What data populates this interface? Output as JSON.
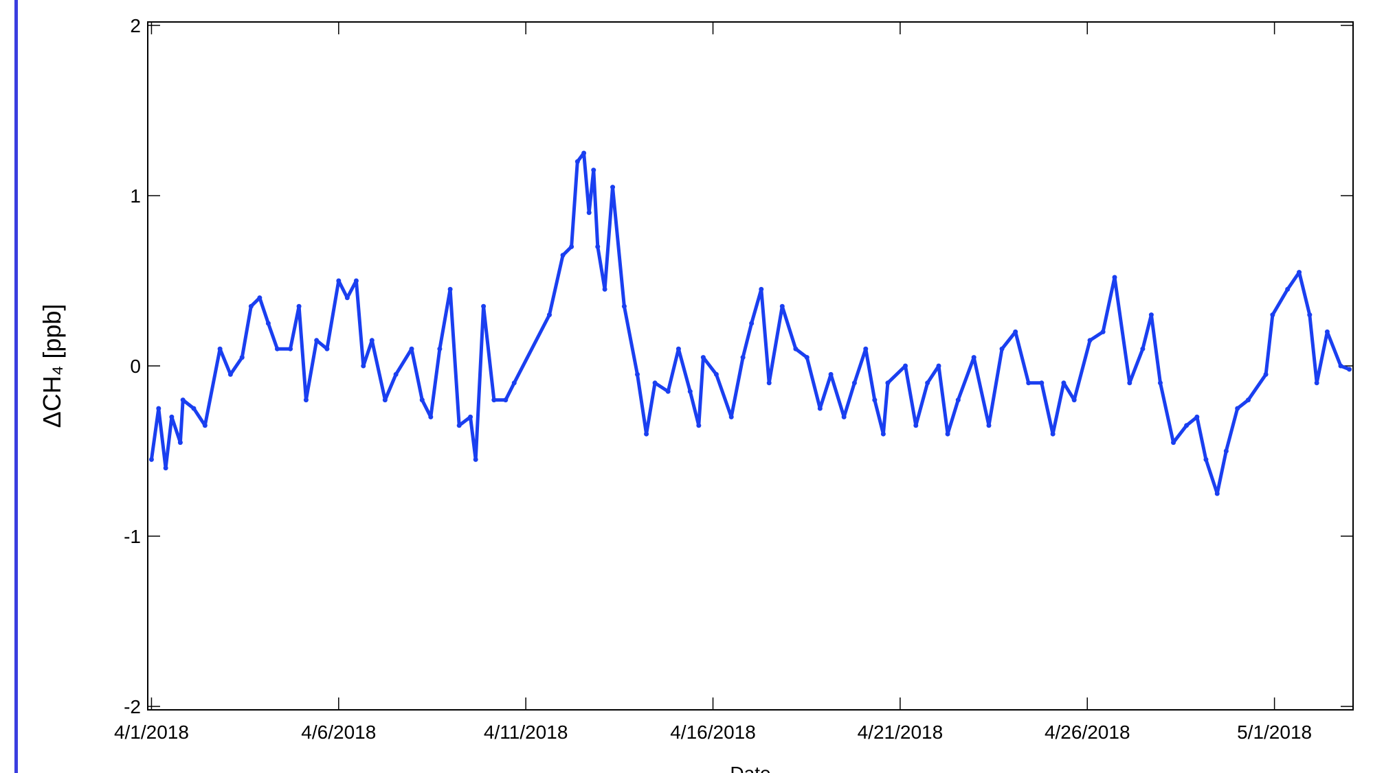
{
  "chart_data": {
    "type": "line",
    "y_label": "ΔCH₄ [ppb]",
    "x_label": "Date",
    "xlim": [
      -0.1,
      32.1
    ],
    "ylim": [
      -2.02,
      2.02
    ],
    "xticks": [
      {
        "value": 0,
        "label": "4/1/2018"
      },
      {
        "value": 5,
        "label": "4/6/2018"
      },
      {
        "value": 10,
        "label": "4/11/2018"
      },
      {
        "value": 15,
        "label": "4/16/2018"
      },
      {
        "value": 20,
        "label": "4/21/2018"
      },
      {
        "value": 25,
        "label": "4/26/2018"
      },
      {
        "value": 30,
        "label": "5/1/2018"
      }
    ],
    "yticks": [
      -2,
      -1,
      0,
      1,
      2
    ],
    "series": [
      {
        "color": "#1a3ff0",
        "x": [
          0,
          0.19,
          0.38,
          0.54,
          0.77,
          0.84,
          1.13,
          1.43,
          1.83,
          2.11,
          2.42,
          2.66,
          2.89,
          3.12,
          3.36,
          3.71,
          3.94,
          4.13,
          4.41,
          4.69,
          5.0,
          5.23,
          5.47,
          5.66,
          5.89,
          6.24,
          6.53,
          6.95,
          7.23,
          7.46,
          7.7,
          7.98,
          8.22,
          8.52,
          8.66,
          8.87,
          9.15,
          9.46,
          9.69,
          10.63,
          10.99,
          11.22,
          11.38,
          11.55,
          11.69,
          11.81,
          11.92,
          12.11,
          12.32,
          12.63,
          12.98,
          13.22,
          13.45,
          13.8,
          14.08,
          14.39,
          14.62,
          14.74,
          15.09,
          15.49,
          15.8,
          16.03,
          16.29,
          16.5,
          16.85,
          17.21,
          17.51,
          17.86,
          18.15,
          18.5,
          18.78,
          19.08,
          19.32,
          19.55,
          19.67,
          20.14,
          20.42,
          20.73,
          21.03,
          21.27,
          21.55,
          21.97,
          22.37,
          22.72,
          23.08,
          23.43,
          23.78,
          24.08,
          24.37,
          24.65,
          25.07,
          25.42,
          25.73,
          26.13,
          26.48,
          26.71,
          26.95,
          27.3,
          27.65,
          27.93,
          28.17,
          28.47,
          28.71,
          29.01,
          29.3,
          29.77,
          29.95,
          30.35,
          30.66,
          30.94,
          31.13,
          31.41,
          31.77,
          32.0
        ],
        "values": [
          -0.55,
          -0.25,
          -0.6,
          -0.3,
          -0.45,
          -0.2,
          -0.25,
          -0.35,
          0.1,
          -0.05,
          0.05,
          0.35,
          0.4,
          0.25,
          0.1,
          0.1,
          0.35,
          -0.2,
          0.15,
          0.1,
          0.5,
          0.4,
          0.5,
          0.0,
          0.15,
          -0.2,
          -0.05,
          0.1,
          -0.2,
          -0.3,
          0.1,
          0.45,
          -0.35,
          -0.3,
          -0.55,
          0.35,
          -0.2,
          -0.2,
          -0.1,
          0.3,
          0.65,
          0.7,
          1.2,
          1.25,
          0.9,
          1.15,
          0.7,
          0.45,
          1.05,
          0.35,
          -0.05,
          -0.4,
          -0.1,
          -0.15,
          0.1,
          -0.15,
          -0.35,
          0.05,
          -0.05,
          -0.3,
          0.05,
          0.25,
          0.45,
          -0.1,
          0.35,
          0.1,
          0.05,
          -0.25,
          -0.05,
          -0.3,
          -0.1,
          0.1,
          -0.2,
          -0.4,
          -0.1,
          0.0,
          -0.35,
          -0.1,
          0.0,
          -0.4,
          -0.2,
          0.05,
          -0.35,
          0.1,
          0.2,
          -0.1,
          -0.1,
          -0.4,
          -0.1,
          -0.2,
          0.15,
          0.2,
          0.52,
          -0.1,
          0.1,
          0.3,
          -0.1,
          -0.45,
          -0.35,
          -0.3,
          -0.55,
          -0.75,
          -0.5,
          -0.25,
          -0.2,
          -0.05,
          0.3,
          0.45,
          0.55,
          0.3,
          -0.1,
          0.2,
          0.0,
          -0.02
        ]
      }
    ]
  }
}
